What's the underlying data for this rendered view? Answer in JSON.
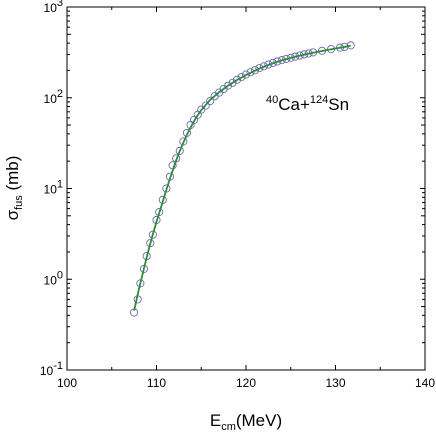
{
  "chart_data": {
    "type": "scatter",
    "title": "",
    "annotation": {
      "sup1": "40",
      "text1": "Ca+",
      "sup2": "124",
      "text2": "Sn"
    },
    "xlabel": {
      "main": "E",
      "sub": "cm",
      "rest": "(MeV)"
    },
    "ylabel": {
      "main": "σ",
      "sub": "fus",
      "rest": " (mb)"
    },
    "xlim": [
      100,
      140
    ],
    "ylim": [
      0.1,
      1000
    ],
    "yscale": "log",
    "grid": false,
    "x_ticks": [
      100,
      110,
      120,
      130,
      140
    ],
    "x_tick_labels": [
      "100",
      "110",
      "120",
      "130",
      "140"
    ],
    "y_ticks": [
      {
        "value": 0.1,
        "base": "10",
        "exp": "-1"
      },
      {
        "value": 1,
        "base": "10",
        "exp": "0"
      },
      {
        "value": 10,
        "base": "10",
        "exp": "1"
      },
      {
        "value": 100,
        "base": "10",
        "exp": "2"
      },
      {
        "value": 1000,
        "base": "10",
        "exp": "3"
      }
    ],
    "series": [
      {
        "kind": "markers",
        "marker": "open-circle",
        "color": "#6b6bb0",
        "points": [
          [
            107.5,
            0.43
          ],
          [
            107.9,
            0.6
          ],
          [
            108.2,
            0.9
          ],
          [
            108.6,
            1.3
          ],
          [
            108.9,
            1.8
          ],
          [
            109.3,
            2.5
          ],
          [
            109.6,
            3.1
          ],
          [
            110.0,
            4.5
          ],
          [
            110.3,
            5.5
          ],
          [
            110.7,
            7.5
          ],
          [
            111.1,
            10.0
          ],
          [
            111.5,
            13.5
          ],
          [
            111.8,
            18.0
          ],
          [
            112.2,
            21.5
          ],
          [
            112.6,
            26.0
          ],
          [
            113.0,
            33.0
          ],
          [
            113.4,
            41.0
          ],
          [
            113.8,
            50.0
          ],
          [
            114.2,
            57.0
          ],
          [
            114.6,
            65.0
          ],
          [
            115.0,
            74.0
          ],
          [
            115.5,
            82.0
          ],
          [
            116.0,
            92.0
          ],
          [
            116.5,
            104.0
          ],
          [
            117.0,
            114.0
          ],
          [
            117.5,
            125.0
          ],
          [
            118.0,
            136.0
          ],
          [
            118.5,
            146.0
          ],
          [
            119.0,
            158.0
          ],
          [
            119.5,
            169.0
          ],
          [
            120.0,
            180.0
          ],
          [
            120.5,
            191.0
          ],
          [
            121.0,
            201.0
          ],
          [
            121.5,
            212.0
          ],
          [
            122.0,
            222.0
          ],
          [
            122.5,
            232.0
          ],
          [
            123.0,
            242.0
          ],
          [
            123.5,
            251.0
          ],
          [
            124.0,
            260.0
          ],
          [
            124.5,
            268.0
          ],
          [
            125.0,
            276.0
          ],
          [
            125.5,
            284.0
          ],
          [
            126.0,
            292.0
          ],
          [
            126.5,
            300.0
          ],
          [
            127.0,
            308.0
          ],
          [
            127.5,
            316.0
          ],
          [
            128.5,
            329.0
          ],
          [
            129.5,
            343.0
          ],
          [
            130.5,
            357.0
          ],
          [
            131.0,
            364.0
          ],
          [
            131.7,
            378.0
          ]
        ]
      },
      {
        "kind": "line",
        "color": "#2f8a3a",
        "points": [
          [
            107.5,
            0.45
          ],
          [
            108.0,
            0.75
          ],
          [
            108.5,
            1.2
          ],
          [
            109.0,
            1.9
          ],
          [
            109.5,
            2.9
          ],
          [
            110.0,
            4.3
          ],
          [
            110.5,
            6.2
          ],
          [
            111.0,
            9.0
          ],
          [
            111.5,
            12.8
          ],
          [
            112.0,
            18.0
          ],
          [
            112.5,
            24.5
          ],
          [
            113.0,
            32.0
          ],
          [
            113.5,
            41.0
          ],
          [
            114.0,
            51.0
          ],
          [
            114.5,
            62.0
          ],
          [
            115.0,
            73.0
          ],
          [
            116.0,
            95.0
          ],
          [
            117.0,
            115.0
          ],
          [
            118.0,
            136.0
          ],
          [
            119.0,
            157.0
          ],
          [
            120.0,
            178.0
          ],
          [
            121.0,
            199.0
          ],
          [
            122.0,
            220.0
          ],
          [
            123.0,
            240.0
          ],
          [
            124.0,
            258.0
          ],
          [
            125.0,
            275.0
          ],
          [
            126.0,
            291.0
          ],
          [
            127.0,
            306.0
          ],
          [
            128.0,
            320.0
          ],
          [
            129.0,
            335.0
          ],
          [
            130.0,
            349.0
          ],
          [
            131.0,
            363.0
          ],
          [
            131.7,
            374.0
          ]
        ]
      }
    ]
  }
}
